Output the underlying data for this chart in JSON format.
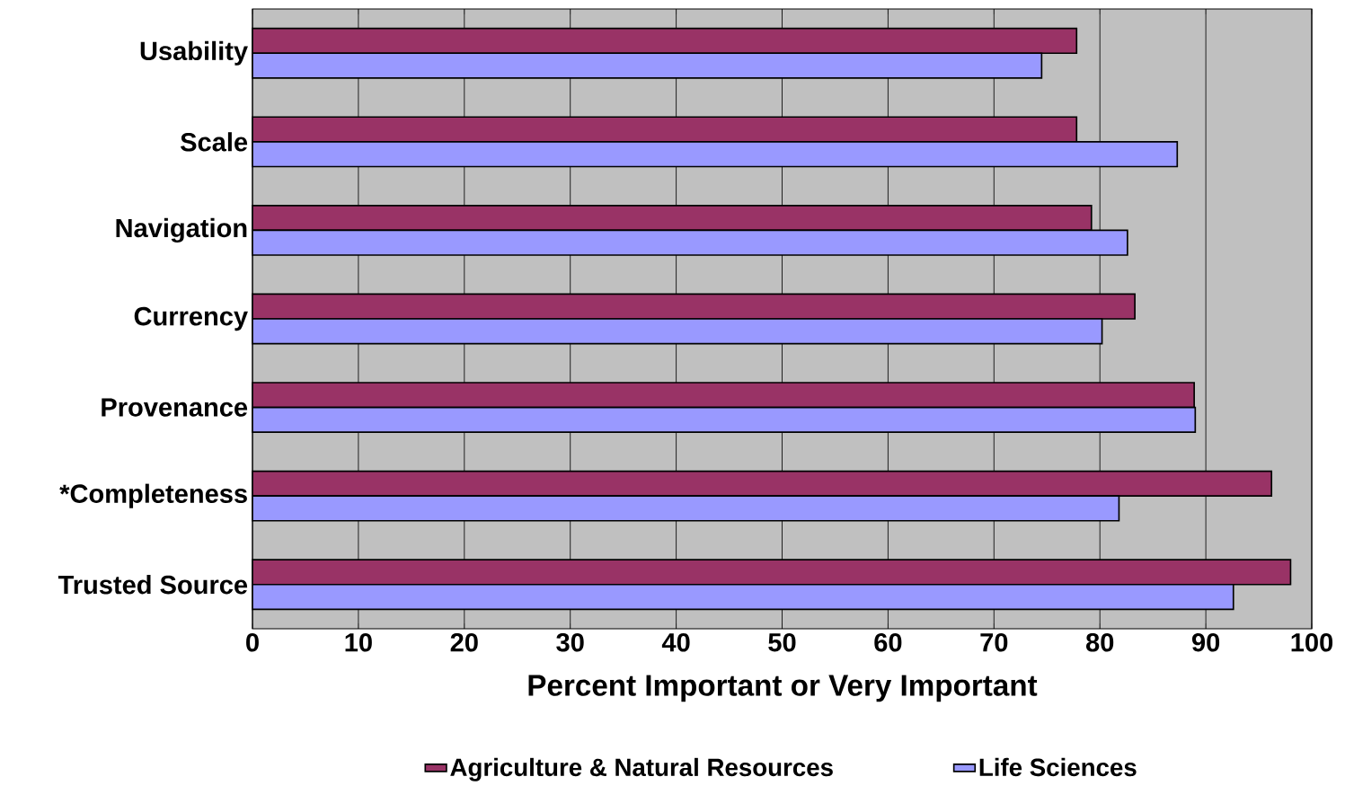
{
  "chart_data": {
    "type": "bar",
    "orientation": "horizontal",
    "xlabel": "Percent Important or Very Important",
    "categories": [
      "Usability",
      "Scale",
      "Navigation",
      "Currency",
      "Provenance",
      "*Completeness",
      "Trusted Source"
    ],
    "series": [
      {
        "name": "Agriculture & Natural Resources",
        "color": "#993366",
        "values": [
          77.8,
          77.8,
          79.2,
          83.3,
          88.9,
          96.2,
          98.0
        ]
      },
      {
        "name": "Life Sciences",
        "color": "#9999ff",
        "values": [
          74.5,
          87.3,
          82.6,
          80.2,
          89.0,
          81.8,
          92.6
        ]
      }
    ],
    "xlim": [
      0,
      100
    ],
    "xticks": [
      0,
      10,
      20,
      30,
      40,
      50,
      60,
      70,
      80,
      90,
      100
    ],
    "grid": "x",
    "legend": "bottom"
  }
}
